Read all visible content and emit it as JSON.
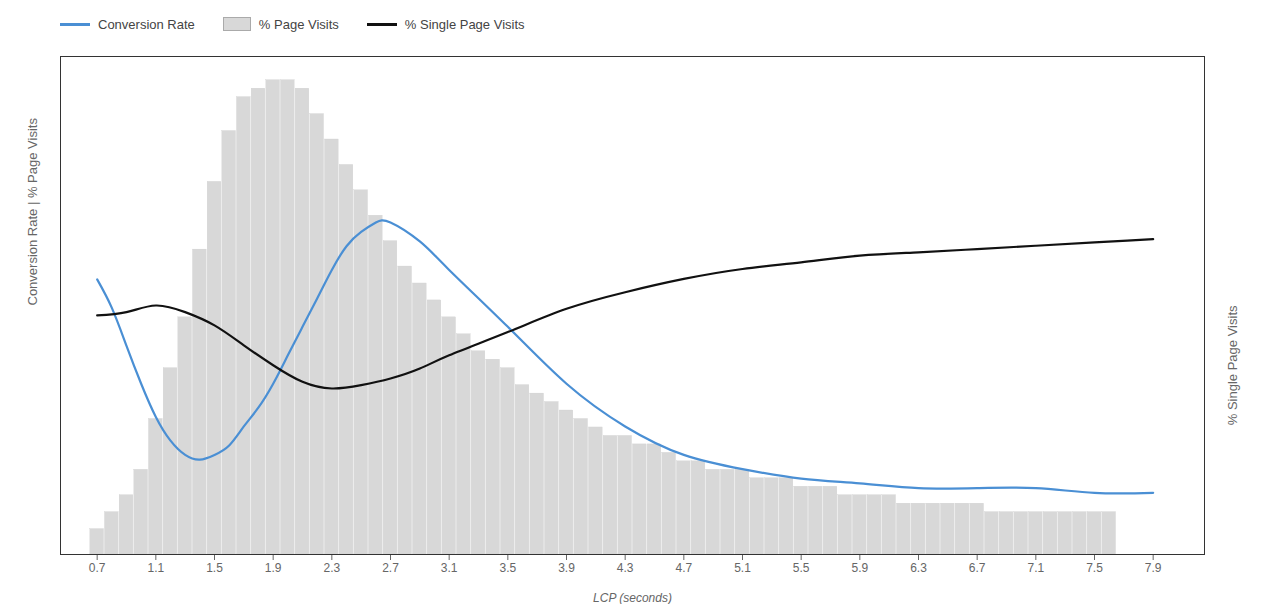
{
  "chart_data": {
    "type": "bar",
    "xlabel": "LCP (seconds)",
    "ylabel": "Conversion Rate | % Page Visits",
    "y2label": "% Single Page Visits",
    "xlim": [
      0.45,
      8.25
    ],
    "xticks": [
      0.7,
      1.1,
      1.5,
      1.9,
      2.3,
      2.7,
      3.1,
      3.5,
      3.9,
      4.3,
      4.7,
      5.1,
      5.5,
      5.9,
      6.3,
      6.7,
      7.1,
      7.5,
      7.9
    ],
    "ylim": [
      0,
      1.05
    ],
    "yticks": [],
    "y2lim": [
      0,
      1.5
    ],
    "y2ticks": [],
    "tick_labels": "x",
    "grid": false,
    "legend": "upper left",
    "series": [
      {
        "name": "Conversion Rate",
        "type": "line",
        "color": "#4a8fd4",
        "x": [
          0.7,
          0.8,
          0.9,
          1.0,
          1.1,
          1.2,
          1.3,
          1.4,
          1.5,
          1.6,
          1.7,
          1.8,
          1.9,
          2.0,
          2.1,
          2.2,
          2.3,
          2.4,
          2.5,
          2.6,
          2.7,
          2.9,
          3.1,
          3.5,
          3.9,
          4.3,
          4.7,
          5.1,
          5.5,
          5.9,
          6.3,
          6.7,
          7.1,
          7.5,
          7.9
        ],
        "values": [
          0.58,
          0.52,
          0.44,
          0.36,
          0.29,
          0.24,
          0.21,
          0.2,
          0.21,
          0.23,
          0.27,
          0.31,
          0.36,
          0.42,
          0.48,
          0.54,
          0.6,
          0.65,
          0.68,
          0.7,
          0.7,
          0.66,
          0.6,
          0.48,
          0.36,
          0.27,
          0.21,
          0.18,
          0.16,
          0.15,
          0.14,
          0.14,
          0.14,
          0.13,
          0.13
        ]
      },
      {
        "name": "% Page Visits",
        "type": "bar",
        "color": "#d8d8d8",
        "x": [
          0.7,
          0.8,
          0.9,
          1.0,
          1.1,
          1.2,
          1.3,
          1.4,
          1.5,
          1.6,
          1.7,
          1.8,
          1.9,
          2.0,
          2.1,
          2.2,
          2.3,
          2.4,
          2.5,
          2.6,
          2.7,
          2.8,
          2.9,
          3.0,
          3.1,
          3.2,
          3.3,
          3.4,
          3.5,
          3.6,
          3.7,
          3.8,
          3.9,
          4.0,
          4.1,
          4.2,
          4.3,
          4.4,
          4.5,
          4.6,
          4.7,
          4.8,
          4.9,
          5.0,
          5.1,
          5.2,
          5.3,
          5.4,
          5.5,
          5.6,
          5.7,
          5.8,
          5.9,
          6.0,
          6.1,
          6.2,
          6.3,
          6.4,
          6.5,
          6.6,
          6.7,
          6.8,
          6.9,
          7.0,
          7.1,
          7.2,
          7.3,
          7.4,
          7.5,
          7.6
        ],
        "values": [
          0.05357142857142857,
          0.08928571428571429,
          0.125,
          0.17857142857142858,
          0.2857142857142857,
          0.39285714285714285,
          0.5,
          0.6428571428571429,
          0.7857142857142857,
          0.8928571428571429,
          0.9642857142857143,
          0.9821428571428571,
          1,
          1,
          0.9821428571428571,
          0.9285714285714286,
          0.875,
          0.8214285714285714,
          0.7678571428571429,
          0.7142857142857143,
          0.6607142857142857,
          0.6071428571428571,
          0.5714285714285714,
          0.5357142857142857,
          0.5,
          0.4642857142857143,
          0.42857142857142855,
          0.4107142857142857,
          0.39285714285714285,
          0.35714285714285715,
          0.3392857142857143,
          0.32142857142857145,
          0.30357142857142855,
          0.2857142857142857,
          0.26785714285714285,
          0.25,
          0.25,
          0.23214285714285715,
          0.23214285714285715,
          0.21428571428571427,
          0.19642857142857142,
          0.19642857142857142,
          0.17857142857142858,
          0.17857142857142858,
          0.17857142857142858,
          0.16071428571428573,
          0.16071428571428573,
          0.16071428571428573,
          0.14285714285714285,
          0.14285714285714285,
          0.14285714285714285,
          0.125,
          0.125,
          0.125,
          0.125,
          0.10714285714285714,
          0.10714285714285714,
          0.10714285714285714,
          0.10714285714285714,
          0.10714285714285714,
          0.10714285714285714,
          0.08928571428571429,
          0.08928571428571429,
          0.08928571428571429,
          0.08928571428571429,
          0.08928571428571429,
          0.08928571428571429,
          0.08928571428571429,
          0.08928571428571429,
          0.08928571428571429
        ]
      },
      {
        "name": "% Single Page Visits",
        "type": "line",
        "color": "#111111",
        "axis": "y2",
        "x": [
          0.7,
          0.9,
          1.1,
          1.3,
          1.5,
          1.7,
          1.9,
          2.1,
          2.3,
          2.5,
          2.7,
          2.9,
          3.1,
          3.5,
          3.9,
          4.3,
          4.7,
          5.1,
          5.5,
          5.9,
          6.3,
          6.7,
          7.1,
          7.5,
          7.9
        ],
        "values": [
          0.72,
          0.73,
          0.75,
          0.73,
          0.69,
          0.63,
          0.57,
          0.52,
          0.5,
          0.51,
          0.53,
          0.56,
          0.6,
          0.67,
          0.74,
          0.79,
          0.83,
          0.86,
          0.88,
          0.9,
          0.91,
          0.92,
          0.93,
          0.94,
          0.95
        ]
      }
    ]
  }
}
